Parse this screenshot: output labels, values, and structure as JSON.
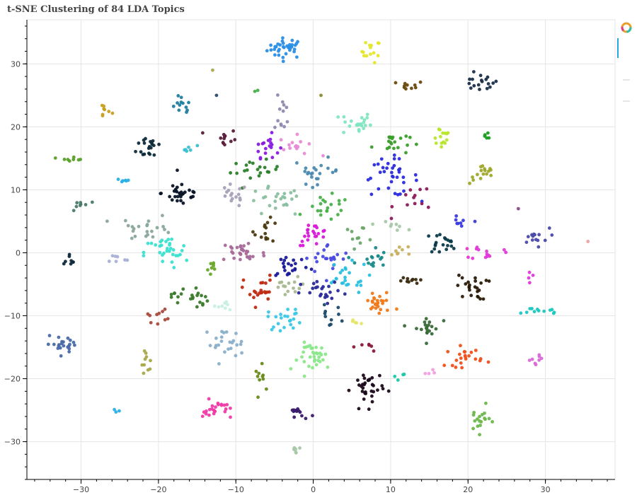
{
  "chart_data": {
    "type": "scatter",
    "title": "t-SNE Clustering of 84 LDA Topics",
    "xlim": [
      -37,
      39
    ],
    "ylim": [
      -36,
      37
    ],
    "xticks": [
      -30,
      -20,
      -10,
      0,
      10,
      20,
      30
    ],
    "yticks": [
      -30,
      -20,
      -10,
      0,
      10,
      20,
      30
    ],
    "grid": true,
    "legend": "none",
    "clusters": [
      {
        "cx": -3.5,
        "cy": 32.5,
        "sx": 1.2,
        "sy": 0.8,
        "n": 35,
        "color": "#2b8ee6"
      },
      {
        "cx": 7.5,
        "cy": 32.0,
        "sx": 0.6,
        "sy": 0.9,
        "n": 14,
        "color": "#e6e62b"
      },
      {
        "cx": 12.5,
        "cy": 26.5,
        "sx": 0.9,
        "sy": 0.4,
        "n": 10,
        "color": "#6b4a10"
      },
      {
        "cx": 21.5,
        "cy": 27.0,
        "sx": 1.2,
        "sy": 0.7,
        "n": 18,
        "color": "#1a2e4a"
      },
      {
        "cx": -27.0,
        "cy": 22.5,
        "sx": 0.5,
        "sy": 0.6,
        "n": 8,
        "color": "#c8a020"
      },
      {
        "cx": -17.0,
        "cy": 23.0,
        "sx": 0.6,
        "sy": 1.0,
        "n": 12,
        "color": "#1f7f9f"
      },
      {
        "cx": -4.0,
        "cy": 22.0,
        "sx": 0.5,
        "sy": 1.4,
        "n": 12,
        "color": "#8e8ab0"
      },
      {
        "cx": 5.5,
        "cy": 20.5,
        "sx": 1.0,
        "sy": 1.0,
        "n": 22,
        "color": "#7fe6c0"
      },
      {
        "cx": 16.5,
        "cy": 18.5,
        "sx": 0.7,
        "sy": 1.0,
        "n": 14,
        "color": "#b8e62b"
      },
      {
        "cx": -21.0,
        "cy": 17.0,
        "sx": 0.9,
        "sy": 1.1,
        "n": 20,
        "color": "#0e2a3a"
      },
      {
        "cx": -11.5,
        "cy": 18.0,
        "sx": 0.8,
        "sy": 0.9,
        "n": 12,
        "color": "#5a1e3a"
      },
      {
        "cx": -6.0,
        "cy": 17.0,
        "sx": 0.8,
        "sy": 0.9,
        "n": 18,
        "color": "#8a1ae0"
      },
      {
        "cx": -2.0,
        "cy": 17.0,
        "sx": 1.2,
        "sy": 0.8,
        "n": 14,
        "color": "#e88ad6"
      },
      {
        "cx": 10.0,
        "cy": 17.5,
        "sx": 1.2,
        "sy": 1.0,
        "n": 20,
        "color": "#3a9e2a"
      },
      {
        "cx": 22.5,
        "cy": 18.5,
        "sx": 0.4,
        "sy": 0.3,
        "n": 5,
        "color": "#1a9e20"
      },
      {
        "cx": -16.0,
        "cy": 16.5,
        "sx": 0.5,
        "sy": 0.3,
        "n": 6,
        "color": "#3ac0d0"
      },
      {
        "cx": -31.0,
        "cy": 15.0,
        "sx": 0.8,
        "sy": 0.2,
        "n": 8,
        "color": "#5aa02a"
      },
      {
        "cx": -7.5,
        "cy": 13.0,
        "sx": 1.6,
        "sy": 0.8,
        "n": 20,
        "color": "#2a7f2a"
      },
      {
        "cx": 0.5,
        "cy": 13.0,
        "sx": 1.5,
        "sy": 1.0,
        "n": 22,
        "color": "#4a8ab0"
      },
      {
        "cx": 10.0,
        "cy": 12.0,
        "sx": 1.8,
        "sy": 1.5,
        "n": 35,
        "color": "#2a2ae0"
      },
      {
        "cx": 22.0,
        "cy": 12.5,
        "sx": 0.9,
        "sy": 0.8,
        "n": 16,
        "color": "#9ea82a"
      },
      {
        "cx": -24.5,
        "cy": 11.5,
        "sx": 0.5,
        "sy": 0.2,
        "n": 6,
        "color": "#2ab0e6"
      },
      {
        "cx": -17.0,
        "cy": 9.5,
        "sx": 1.3,
        "sy": 1.1,
        "n": 30,
        "color": "#0a1428"
      },
      {
        "cx": -10.5,
        "cy": 9.0,
        "sx": 1.0,
        "sy": 0.9,
        "n": 16,
        "color": "#a8a0b8"
      },
      {
        "cx": -5.0,
        "cy": 8.0,
        "sx": 1.8,
        "sy": 1.2,
        "n": 24,
        "color": "#8ac0a0"
      },
      {
        "cx": 2.0,
        "cy": 7.0,
        "sx": 1.4,
        "sy": 1.0,
        "n": 20,
        "color": "#4ab04a"
      },
      {
        "cx": 13.5,
        "cy": 8.5,
        "sx": 1.5,
        "sy": 1.2,
        "n": 12,
        "color": "#8a1a5a"
      },
      {
        "cx": -30.0,
        "cy": 7.5,
        "sx": 0.6,
        "sy": 0.8,
        "n": 8,
        "color": "#4a7a6a"
      },
      {
        "cx": -21.5,
        "cy": 4.0,
        "sx": 1.8,
        "sy": 1.0,
        "n": 22,
        "color": "#8aa89a"
      },
      {
        "cx": -6.0,
        "cy": 3.5,
        "sx": 0.8,
        "sy": 0.9,
        "n": 14,
        "color": "#4a3a10"
      },
      {
        "cx": 0.0,
        "cy": 3.0,
        "sx": 1.0,
        "sy": 0.9,
        "n": 22,
        "color": "#d81ad8"
      },
      {
        "cx": 6.0,
        "cy": 3.0,
        "sx": 1.2,
        "sy": 0.6,
        "n": 10,
        "color": "#6aa86a"
      },
      {
        "cx": 10.0,
        "cy": 4.5,
        "sx": 1.0,
        "sy": 0.5,
        "n": 8,
        "color": "#a8c8a8"
      },
      {
        "cx": 19.0,
        "cy": 4.5,
        "sx": 0.6,
        "sy": 0.6,
        "n": 8,
        "color": "#3a3ae0"
      },
      {
        "cx": 16.5,
        "cy": 1.5,
        "sx": 1.0,
        "sy": 0.8,
        "n": 20,
        "color": "#0a3a4a"
      },
      {
        "cx": 28.5,
        "cy": 2.5,
        "sx": 1.0,
        "sy": 0.7,
        "n": 14,
        "color": "#4a4aa8"
      },
      {
        "cx": -19.0,
        "cy": 0.0,
        "sx": 1.4,
        "sy": 1.3,
        "n": 32,
        "color": "#3ae0d0"
      },
      {
        "cx": -9.0,
        "cy": 0.0,
        "sx": 1.5,
        "sy": 1.1,
        "n": 30,
        "color": "#a86a9a"
      },
      {
        "cx": -3.0,
        "cy": -2.0,
        "sx": 1.3,
        "sy": 1.0,
        "n": 22,
        "color": "#1a1a9a"
      },
      {
        "cx": 2.0,
        "cy": -1.0,
        "sx": 1.5,
        "sy": 1.2,
        "n": 22,
        "color": "#4a4ae0"
      },
      {
        "cx": 7.5,
        "cy": -1.0,
        "sx": 1.0,
        "sy": 1.0,
        "n": 16,
        "color": "#1a8a8a"
      },
      {
        "cx": 11.5,
        "cy": 0.5,
        "sx": 0.8,
        "sy": 0.5,
        "n": 8,
        "color": "#c8b060"
      },
      {
        "cx": 22.5,
        "cy": 0.0,
        "sx": 1.0,
        "sy": 0.6,
        "n": 14,
        "color": "#e03ad8"
      },
      {
        "cx": -31.5,
        "cy": -0.8,
        "sx": 0.5,
        "sy": 0.5,
        "n": 8,
        "color": "#0e2a3a"
      },
      {
        "cx": -25.5,
        "cy": -1.0,
        "sx": 0.8,
        "sy": 0.4,
        "n": 7,
        "color": "#a8b0d8"
      },
      {
        "cx": -13.5,
        "cy": -2.5,
        "sx": 0.6,
        "sy": 0.8,
        "n": 8,
        "color": "#6aa82a"
      },
      {
        "cx": 4.0,
        "cy": -4.0,
        "sx": 1.6,
        "sy": 1.2,
        "n": 24,
        "color": "#2ac0e0"
      },
      {
        "cx": 12.0,
        "cy": -4.5,
        "sx": 0.8,
        "sy": 0.5,
        "n": 10,
        "color": "#3a2a10"
      },
      {
        "cx": 20.5,
        "cy": -5.5,
        "sx": 1.0,
        "sy": 1.0,
        "n": 24,
        "color": "#2a1a08"
      },
      {
        "cx": 28.0,
        "cy": -4.0,
        "sx": 0.3,
        "sy": 0.5,
        "n": 4,
        "color": "#e03ad8"
      },
      {
        "cx": -16.0,
        "cy": -7.0,
        "sx": 1.2,
        "sy": 1.0,
        "n": 22,
        "color": "#3a7a2a"
      },
      {
        "cx": -7.0,
        "cy": -6.0,
        "sx": 1.0,
        "sy": 1.2,
        "n": 22,
        "color": "#c02a10"
      },
      {
        "cx": -3.0,
        "cy": -5.5,
        "sx": 1.2,
        "sy": 0.8,
        "n": 14,
        "color": "#a8b890"
      },
      {
        "cx": 1.5,
        "cy": -6.5,
        "sx": 1.5,
        "sy": 1.0,
        "n": 22,
        "color": "#2a2a9a"
      },
      {
        "cx": 8.5,
        "cy": -8.0,
        "sx": 1.0,
        "sy": 1.0,
        "n": 26,
        "color": "#f07a1a"
      },
      {
        "cx": 29.5,
        "cy": -9.2,
        "sx": 1.2,
        "sy": 0.3,
        "n": 12,
        "color": "#1ac8c0"
      },
      {
        "cx": -20.5,
        "cy": -10.0,
        "sx": 0.8,
        "sy": 0.5,
        "n": 10,
        "color": "#a84a3a"
      },
      {
        "cx": -11.5,
        "cy": -8.5,
        "sx": 0.7,
        "sy": 0.5,
        "n": 8,
        "color": "#c8f0e0"
      },
      {
        "cx": -3.5,
        "cy": -10.5,
        "sx": 1.2,
        "sy": 0.9,
        "n": 22,
        "color": "#3ac8e6"
      },
      {
        "cx": 2.0,
        "cy": -10.0,
        "sx": 0.8,
        "sy": 0.8,
        "n": 10,
        "color": "#1a4a6a"
      },
      {
        "cx": 14.5,
        "cy": -12.0,
        "sx": 0.9,
        "sy": 1.0,
        "n": 20,
        "color": "#3a6a3a"
      },
      {
        "cx": -32.0,
        "cy": -14.5,
        "sx": 1.3,
        "sy": 0.6,
        "n": 22,
        "color": "#4a6aa8"
      },
      {
        "cx": -11.5,
        "cy": -14.5,
        "sx": 1.3,
        "sy": 1.2,
        "n": 24,
        "color": "#8ab0c8"
      },
      {
        "cx": 0.5,
        "cy": -16.5,
        "sx": 1.2,
        "sy": 1.1,
        "n": 34,
        "color": "#8ae88a"
      },
      {
        "cx": 5.5,
        "cy": -11.0,
        "sx": 0.4,
        "sy": 0.3,
        "n": 5,
        "color": "#e6e66a"
      },
      {
        "cx": 7.5,
        "cy": -15.0,
        "sx": 0.6,
        "sy": 0.3,
        "n": 6,
        "color": "#8a1a3a"
      },
      {
        "cx": 19.5,
        "cy": -16.5,
        "sx": 1.2,
        "sy": 0.8,
        "n": 22,
        "color": "#f0501a"
      },
      {
        "cx": 28.5,
        "cy": -17.0,
        "sx": 0.6,
        "sy": 0.5,
        "n": 8,
        "color": "#d86ad8"
      },
      {
        "cx": -21.5,
        "cy": -17.5,
        "sx": 0.5,
        "sy": 1.0,
        "n": 10,
        "color": "#a8a84a"
      },
      {
        "cx": -6.5,
        "cy": -20.0,
        "sx": 0.5,
        "sy": 1.0,
        "n": 10,
        "color": "#6a8a1a"
      },
      {
        "cx": 7.0,
        "cy": -21.5,
        "sx": 1.0,
        "sy": 1.5,
        "n": 34,
        "color": "#1a0a1a"
      },
      {
        "cx": 11.0,
        "cy": -19.5,
        "sx": 0.5,
        "sy": 0.3,
        "n": 4,
        "color": "#1ac8a8"
      },
      {
        "cx": 15.0,
        "cy": -19.0,
        "sx": 0.4,
        "sy": 0.3,
        "n": 4,
        "color": "#f0a0e0"
      },
      {
        "cx": -25.5,
        "cy": -25.0,
        "sx": 0.4,
        "sy": 0.2,
        "n": 3,
        "color": "#2ab0e6"
      },
      {
        "cx": -12.5,
        "cy": -25.0,
        "sx": 0.9,
        "sy": 0.8,
        "n": 24,
        "color": "#f03aa8"
      },
      {
        "cx": -2.0,
        "cy": -25.5,
        "sx": 0.7,
        "sy": 0.5,
        "n": 12,
        "color": "#3a1a6a"
      },
      {
        "cx": 21.5,
        "cy": -26.5,
        "sx": 0.7,
        "sy": 1.0,
        "n": 18,
        "color": "#6ab84a"
      },
      {
        "cx": -2.2,
        "cy": -31.5,
        "sx": 0.4,
        "sy": 0.5,
        "n": 6,
        "color": "#a8c8a8"
      },
      {
        "cx": -13.0,
        "cy": 29.0,
        "sx": 0.1,
        "sy": 0.1,
        "n": 1,
        "color": "#a8a84a"
      },
      {
        "cx": -12.5,
        "cy": 25.0,
        "sx": 0.1,
        "sy": 0.1,
        "n": 1,
        "color": "#2a4a6a"
      },
      {
        "cx": -8.0,
        "cy": 26.0,
        "sx": 0.5,
        "sy": 0.3,
        "n": 2,
        "color": "#4ab04a"
      },
      {
        "cx": 1.0,
        "cy": 25.0,
        "sx": 0.1,
        "sy": 0.1,
        "n": 1,
        "color": "#8a8a2a"
      },
      {
        "cx": 35.5,
        "cy": 1.8,
        "sx": 0.1,
        "sy": 0.1,
        "n": 1,
        "color": "#f0a0a0"
      },
      {
        "cx": 26.5,
        "cy": 7.0,
        "sx": 0.1,
        "sy": 0.1,
        "n": 1,
        "color": "#8a4a8a"
      }
    ]
  },
  "toolbar": {
    "logo_icon": "bokeh-logo-icon",
    "tools": [
      "pan-icon",
      "box-zoom-icon",
      "wheel-zoom-icon"
    ]
  }
}
